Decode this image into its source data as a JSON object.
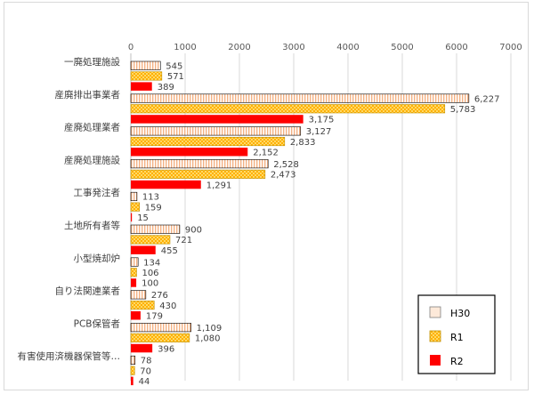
{
  "chart_data": {
    "type": "bar",
    "orientation": "horizontal",
    "categories": [
      "一廃処理施設",
      "産廃排出事業者",
      "産廃処理業者",
      "産廃処理施設",
      "工事発注者",
      "土地所有者等",
      "小型焼却炉",
      "自り法関連業者",
      "PCB保管者",
      "有害使用済機器保管等…"
    ],
    "series": [
      {
        "name": "H30",
        "values": [
          545,
          6227,
          3127,
          2528,
          113,
          900,
          134,
          276,
          1109,
          78
        ],
        "color": "#fde9d9",
        "pattern": "vertical-stripes"
      },
      {
        "name": "R1",
        "values": [
          571,
          5783,
          2833,
          2473,
          159,
          721,
          106,
          430,
          1080,
          70
        ],
        "color": "#ffc000",
        "pattern": "checker"
      },
      {
        "name": "R2",
        "values": [
          389,
          3175,
          2152,
          1291,
          15,
          455,
          100,
          179,
          396,
          44
        ],
        "color": "#ff0000",
        "pattern": "solid"
      }
    ],
    "value_labels": [
      [
        "545",
        "571",
        "389"
      ],
      [
        "6,227",
        "5,783",
        "3,175"
      ],
      [
        "3,127",
        "2,833",
        "2,152"
      ],
      [
        "2,528",
        "2,473",
        "1,291"
      ],
      [
        "113",
        "159",
        "15"
      ],
      [
        "900",
        "721",
        "455"
      ],
      [
        "134",
        "106",
        "100"
      ],
      [
        "276",
        "430",
        "179"
      ],
      [
        "1,109",
        "1,080",
        "396"
      ],
      [
        "78",
        "70",
        "44"
      ]
    ],
    "xlim": [
      0,
      7000
    ],
    "xticks": [
      0,
      1000,
      2000,
      3000,
      4000,
      5000,
      6000,
      7000
    ],
    "x_axis_position": "top",
    "grid": true,
    "legend_position": "bottom-right",
    "title": "",
    "xlabel": "",
    "ylabel": ""
  }
}
